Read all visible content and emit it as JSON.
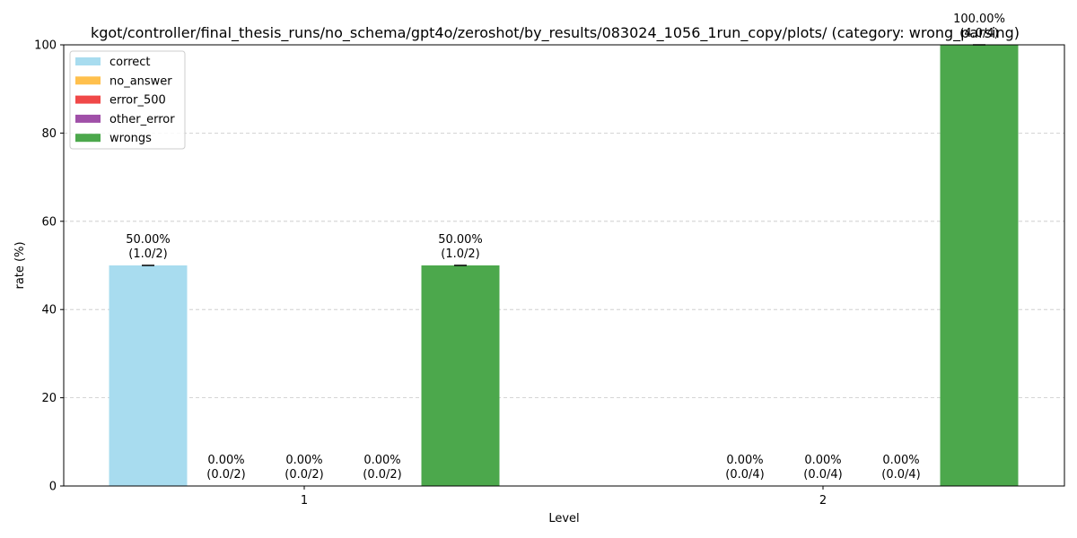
{
  "chart_data": {
    "type": "bar",
    "title": "kgot/controller/final_thesis_runs/no_schema/gpt4o/zeroshot/by_results/083024_1056_1run_copy/plots/ (category: wrong_parsing)",
    "xlabel": "Level",
    "ylabel": "rate (%)",
    "ylim": [
      0,
      100
    ],
    "yticks": [
      0,
      20,
      40,
      60,
      80,
      100
    ],
    "categories": [
      "1",
      "2"
    ],
    "grid": true,
    "legend_position": "top-left",
    "series": [
      {
        "name": "correct",
        "color": "#a8dcef",
        "values": [
          50,
          0
        ],
        "labels": [
          "50.00%\n(1.0/2)",
          ""
        ]
      },
      {
        "name": "no_answer",
        "color": "#ffc04d",
        "values": [
          0,
          0
        ],
        "labels": [
          "0.00%\n(0.0/2)",
          "0.00%\n(0.0/4)"
        ]
      },
      {
        "name": "error_500",
        "color": "#f04848",
        "values": [
          0,
          0
        ],
        "labels": [
          "0.00%\n(0.0/2)",
          "0.00%\n(0.0/4)"
        ]
      },
      {
        "name": "other_error",
        "color": "#a050a8",
        "values": [
          0,
          0
        ],
        "labels": [
          "0.00%\n(0.0/2)",
          "0.00%\n(0.0/4)"
        ]
      },
      {
        "name": "wrongs",
        "color": "#4ca84c",
        "values": [
          50,
          100
        ],
        "labels": [
          "50.00%\n(1.0/2)",
          "100.00%\n(4.0/4)"
        ]
      }
    ]
  }
}
